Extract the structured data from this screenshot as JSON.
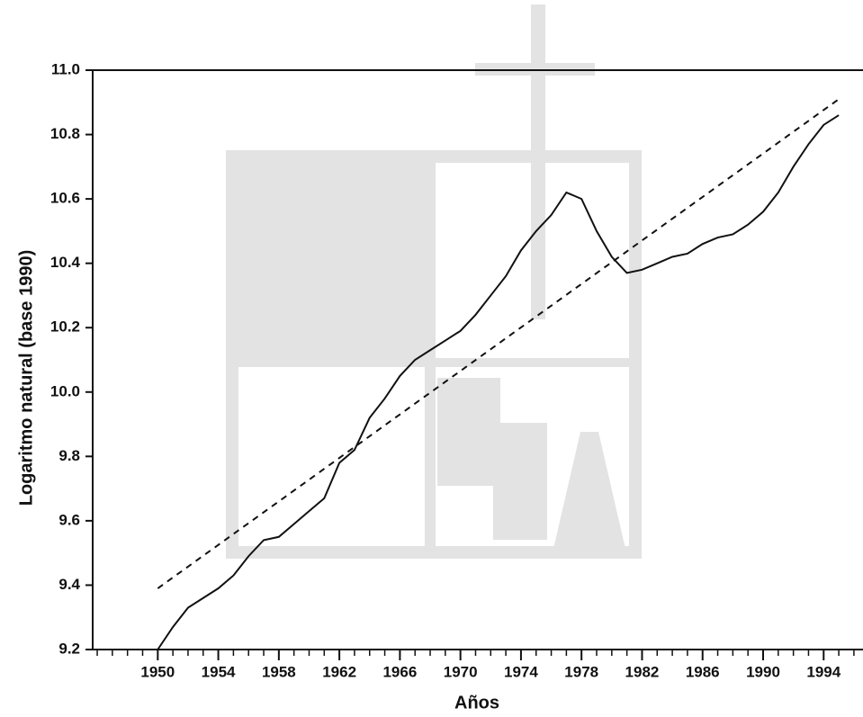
{
  "chart_data": {
    "type": "line",
    "x_label": "Años",
    "y_label": "Logaritmo natural (base 1990)",
    "xlim": [
      1945.7,
      1996.6
    ],
    "ylim": [
      9.2,
      11.0
    ],
    "xticks": [
      1950,
      1954,
      1958,
      1962,
      1966,
      1970,
      1974,
      1978,
      1982,
      1986,
      1990,
      1994
    ],
    "xminorticks": [
      1946,
      1947,
      1948,
      1949,
      1950,
      1951,
      1952,
      1953,
      1954,
      1955,
      1956,
      1957,
      1958,
      1959,
      1960,
      1961,
      1962,
      1963,
      1964,
      1965,
      1966,
      1967,
      1968,
      1969,
      1970,
      1971,
      1972,
      1973,
      1974,
      1975,
      1976,
      1977,
      1978,
      1979,
      1980,
      1981,
      1982,
      1983,
      1984,
      1985,
      1986,
      1987,
      1988,
      1989,
      1990,
      1991,
      1992,
      1993,
      1994,
      1995,
      1996
    ],
    "yticks": [
      {
        "value": 9.2,
        "label": "9.2"
      },
      {
        "value": 9.4,
        "label": "9.4"
      },
      {
        "value": 9.6,
        "label": "9.6"
      },
      {
        "value": 9.8,
        "label": "9.8"
      },
      {
        "value": 10.0,
        "label": "10.0"
      },
      {
        "value": 10.2,
        "label": "10.2"
      },
      {
        "value": 10.4,
        "label": "10.4"
      },
      {
        "value": 10.6,
        "label": "10.6"
      },
      {
        "value": 10.8,
        "label": "10.8"
      },
      {
        "value": 11.0,
        "label": "11.0"
      }
    ],
    "series": [
      {
        "color": "#111111",
        "dashed": false,
        "x": [
          1950,
          1951,
          1952,
          1953,
          1954,
          1955,
          1956,
          1957,
          1958,
          1959,
          1960,
          1961,
          1962,
          1963,
          1964,
          1965,
          1966,
          1967,
          1968,
          1969,
          1970,
          1971,
          1972,
          1973,
          1974,
          1975,
          1976,
          1977,
          1978,
          1979,
          1980,
          1981,
          1982,
          1983,
          1984,
          1985,
          1986,
          1987,
          1988,
          1989,
          1990,
          1991,
          1992,
          1993,
          1994,
          1995
        ],
        "values": [
          9.2,
          9.27,
          9.33,
          9.36,
          9.39,
          9.43,
          9.49,
          9.54,
          9.55,
          9.59,
          9.63,
          9.67,
          9.78,
          9.82,
          9.92,
          9.98,
          10.05,
          10.1,
          10.13,
          10.16,
          10.19,
          10.24,
          10.3,
          10.36,
          10.44,
          10.5,
          10.55,
          10.62,
          10.6,
          10.5,
          10.42,
          10.37,
          10.38,
          10.4,
          10.42,
          10.43,
          10.46,
          10.48,
          10.49,
          10.52,
          10.56,
          10.62,
          10.7,
          10.77,
          10.83,
          10.86
        ]
      },
      {
        "color": "#111111",
        "dashed": true,
        "x": [
          1950,
          1995
        ],
        "values": [
          9.39,
          10.91
        ]
      }
    ]
  }
}
